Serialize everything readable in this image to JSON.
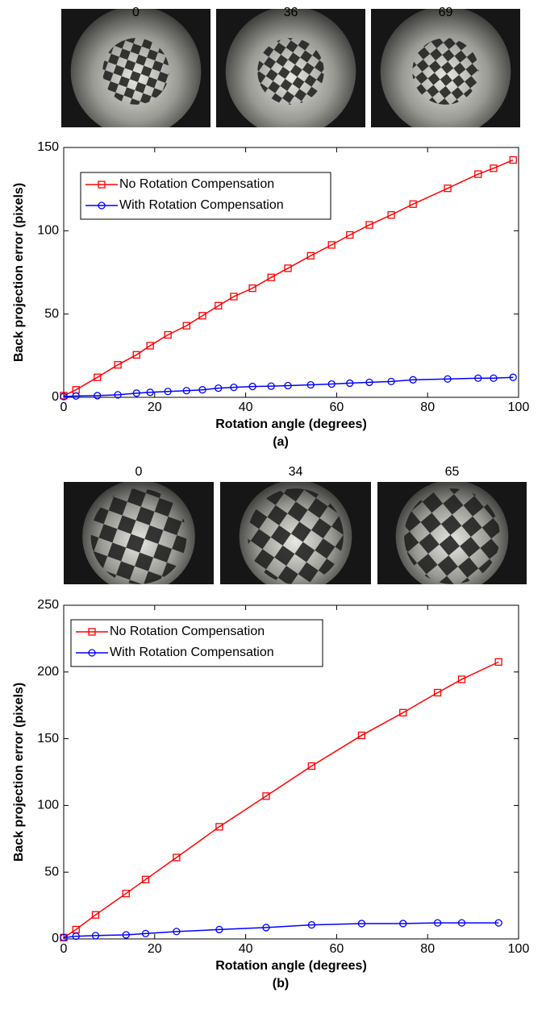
{
  "chart_data": [
    {
      "type": "line",
      "caption": "(a)",
      "image_labels": [
        0,
        36,
        69
      ],
      "xlabel": "Rotation angle (degrees)",
      "ylabel": "Back projection error (pixels)",
      "xlim": [
        0,
        100
      ],
      "xticks": [
        0,
        20,
        40,
        60,
        80,
        100
      ],
      "ylim": [
        0,
        150
      ],
      "yticks": [
        0,
        50,
        100,
        150
      ],
      "legend": "upper left",
      "x": [
        0,
        2.7,
        7.4,
        11.9,
        16,
        19,
        22.9,
        27,
        30.5,
        34,
        37.4,
        41.5,
        45.6,
        49.3,
        54.3,
        58.9,
        62.9,
        67.2,
        72,
        76.8,
        84.4,
        91.1,
        94.5,
        98.8
      ],
      "series": [
        {
          "name": "No Rotation Compensation",
          "color": "#ff0000",
          "marker": "square",
          "values": [
            1,
            4.5,
            12,
            19.5,
            25.5,
            31,
            37.5,
            43,
            49,
            55,
            60.5,
            65.5,
            72,
            77.5,
            85,
            91.5,
            97.5,
            103.5,
            109.5,
            116,
            125.5,
            134,
            137.5,
            142.5
          ]
        },
        {
          "name": "With Rotation Compensation",
          "color": "#0000ff",
          "marker": "circle",
          "values": [
            0.5,
            0.8,
            1,
            1.5,
            2.5,
            3,
            3.5,
            4,
            4.5,
            5.5,
            6,
            6.5,
            6.7,
            7,
            7.5,
            8,
            8.5,
            9,
            9.5,
            10.5,
            11,
            11.5,
            11.5,
            12
          ]
        }
      ]
    },
    {
      "type": "line",
      "caption": "(b)",
      "image_labels": [
        0,
        34,
        65
      ],
      "xlabel": "Rotation angle (degrees)",
      "ylabel": "Back projection error (pixels)",
      "xlim": [
        0,
        100
      ],
      "xticks": [
        0,
        20,
        40,
        60,
        80,
        100
      ],
      "ylim": [
        0,
        250
      ],
      "yticks": [
        0,
        50,
        100,
        150,
        200,
        250
      ],
      "legend": "upper left",
      "x": [
        0,
        2.7,
        7,
        13.7,
        18,
        24.8,
        34.2,
        44.5,
        54.5,
        65.5,
        74.6,
        82.2,
        87.5,
        95.6
      ],
      "series": [
        {
          "name": "No Rotation Compensation",
          "color": "#ff0000",
          "marker": "square",
          "values": [
            1,
            7,
            18,
            34,
            44.5,
            61,
            84,
            107,
            129.5,
            152.5,
            169.5,
            184.5,
            194.5,
            207.5
          ]
        },
        {
          "name": "With Rotation Compensation",
          "color": "#0000ff",
          "marker": "circle",
          "values": [
            1,
            2,
            2.5,
            3,
            4,
            5.5,
            7,
            8.5,
            10.5,
            11.5,
            11.5,
            12,
            12,
            12
          ]
        }
      ]
    }
  ]
}
